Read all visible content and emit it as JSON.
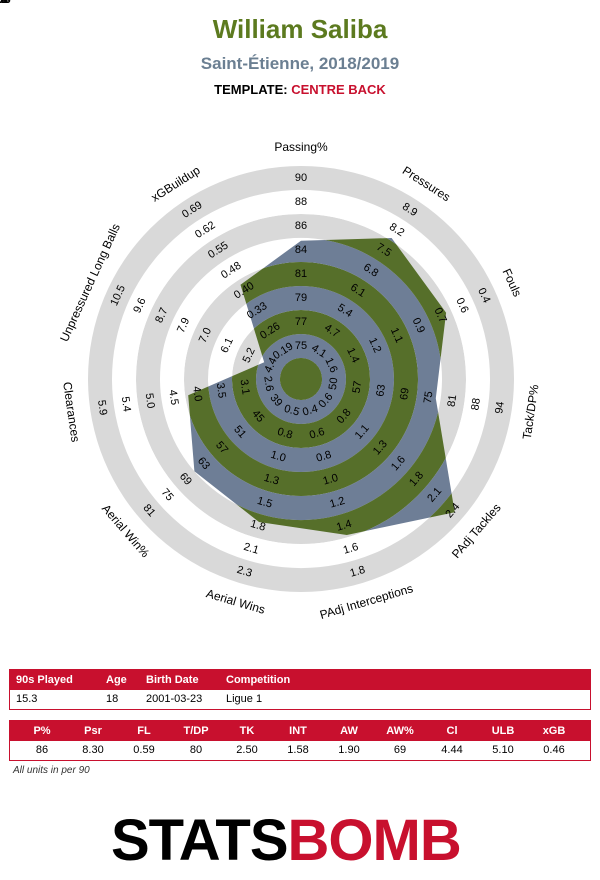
{
  "header": {
    "player": "William Saliba",
    "team_season": "Saint-Étienne, 2018/2019",
    "template_label": "TEMPLATE:",
    "template_name": "CENTRE BACK"
  },
  "chart_data": {
    "type": "radar",
    "axes": [
      {
        "label": "Passing%",
        "ticks": [
          "75",
          "77",
          "79",
          "81",
          "84",
          "86",
          "88",
          "90",
          "93"
        ],
        "min": 75,
        "max": 93,
        "value": 86
      },
      {
        "label": "Pressures",
        "ticks": [
          "4.1",
          "4.7",
          "5.4",
          "6.1",
          "6.8",
          "7.5",
          "8.2",
          "8.9",
          "9.6"
        ],
        "min": 4.1,
        "max": 9.6,
        "value": 8.3
      },
      {
        "label": "Fouls",
        "ticks": [
          "1.6",
          "1.4",
          "1.2",
          "1.1",
          "0.9",
          "0.7",
          "0.6",
          "0.4",
          "0.2"
        ],
        "min": 1.6,
        "max": 0.2,
        "value": 0.59
      },
      {
        "label": "Tack/DP%",
        "ticks": [
          "50",
          "57",
          "63",
          "69",
          "75",
          "81",
          "88",
          "94",
          "100"
        ],
        "min": 50,
        "max": 100,
        "value": 80
      },
      {
        "label": "PAdj Tackles",
        "ticks": [
          "0.6",
          "0.8",
          "1.1",
          "1.3",
          "1.6",
          "1.8",
          "2.1",
          "2.4",
          "2.6"
        ],
        "min": 0.6,
        "max": 2.6,
        "value": 2.5
      },
      {
        "label": "PAdj Interceptions",
        "ticks": [
          "0.4",
          "0.6",
          "0.8",
          "1.0",
          "1.2",
          "1.4",
          "1.6",
          "1.8",
          "2.0"
        ],
        "min": 0.4,
        "max": 2.0,
        "value": 1.58
      },
      {
        "label": "Aerial Wins",
        "ticks": [
          "0.5",
          "0.8",
          "1.0",
          "1.3",
          "1.5",
          "1.8",
          "2.1",
          "2.3",
          "2.6"
        ],
        "min": 0.5,
        "max": 2.6,
        "value": 1.9
      },
      {
        "label": "Aerial Win%",
        "ticks": [
          "39",
          "45",
          "51",
          "57",
          "63",
          "69",
          "75",
          "81",
          "87"
        ],
        "min": 39,
        "max": 87,
        "value": 69
      },
      {
        "label": "Clearances",
        "ticks": [
          "2.6",
          "3.1",
          "3.5",
          "4.0",
          "4.5",
          "5.0",
          "5.4",
          "5.9",
          "6.4"
        ],
        "min": 2.6,
        "max": 6.4,
        "value": 4.44
      },
      {
        "label": "Unpressured Long Balls",
        "ticks": [
          "4.4",
          "5.2",
          "6.1",
          "7.0",
          "7.9",
          "8.7",
          "9.6",
          "10.5",
          "11.3"
        ],
        "min": 4.4,
        "max": 11.3,
        "value": 5.1
      },
      {
        "label": "xGBuildup",
        "ticks": [
          "0.19",
          "0.26",
          "0.33",
          "0.40",
          "0.48",
          "0.55",
          "0.62",
          "0.69",
          "0.76"
        ],
        "min": 0.19,
        "max": 0.76,
        "value": 0.46
      }
    ],
    "colors": {
      "ring_green": "#566f2a",
      "ring_slate": "#6e7e96",
      "ring_grey": "#d9d9d9",
      "center_green": "#566f2a"
    }
  },
  "info_table": {
    "headers": [
      "90s Played",
      "Age",
      "Birth Date",
      "Competition"
    ],
    "values": [
      "15.3",
      "18",
      "2001-03-23",
      "Ligue 1"
    ]
  },
  "stats_table": {
    "headers": [
      "P%",
      "Psr",
      "FL",
      "T/DP",
      "TK",
      "INT",
      "AW",
      "AW%",
      "Cl",
      "ULB",
      "xGB"
    ],
    "values": [
      "86",
      "8.30",
      "0.59",
      "80",
      "2.50",
      "1.58",
      "1.90",
      "69",
      "4.44",
      "5.10",
      "0.46"
    ]
  },
  "footer": {
    "note": "All units in per 90",
    "logo_left": "STATS",
    "logo_right": "BOMB"
  }
}
